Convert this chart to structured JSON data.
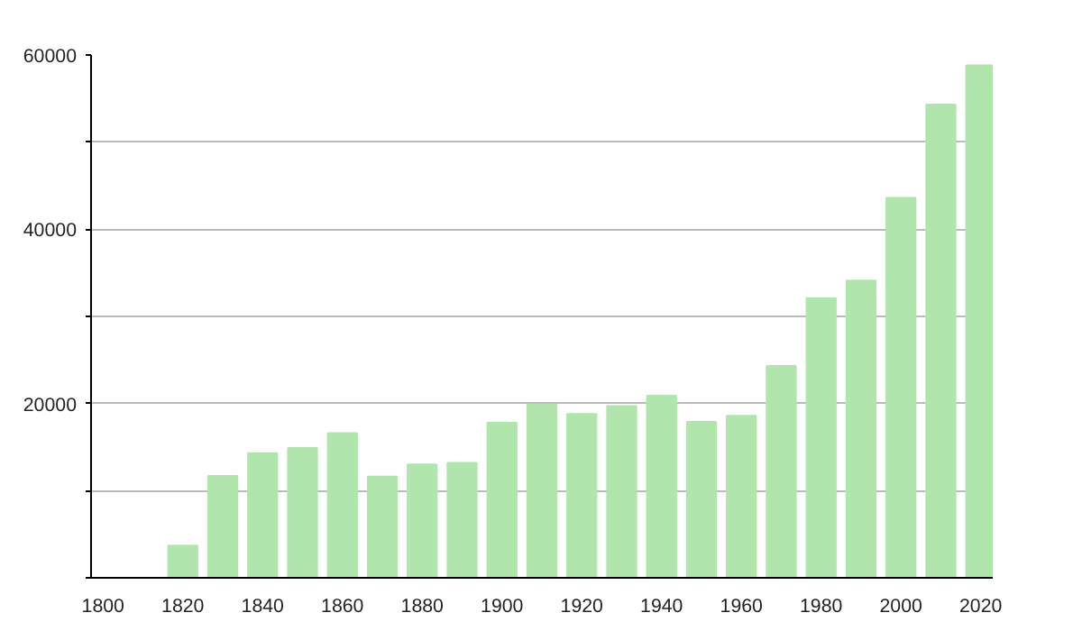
{
  "chart_data": {
    "type": "bar",
    "x": [
      1820,
      1830,
      1840,
      1850,
      1860,
      1870,
      1880,
      1890,
      1900,
      1910,
      1920,
      1930,
      1940,
      1950,
      1960,
      1970,
      1980,
      1990,
      2000,
      2010,
      2020
    ],
    "values": [
      3700,
      11700,
      14300,
      14900,
      16600,
      11600,
      13000,
      13200,
      17800,
      19900,
      18800,
      19700,
      20900,
      17900,
      18600,
      24300,
      32100,
      34100,
      43600,
      54300,
      58800
    ],
    "color": "#b0e6ac",
    "xlim": [
      1797,
      2023
    ],
    "xticks": [
      1800,
      1820,
      1840,
      1860,
      1880,
      1900,
      1920,
      1940,
      1960,
      1980,
      2000,
      2020
    ],
    "ylim": [
      0,
      60000
    ],
    "yticks": [
      {
        "value": 0,
        "label": null
      },
      {
        "value": 10000,
        "label": null
      },
      20000,
      {
        "value": 30000,
        "label": null
      },
      40000,
      {
        "value": 50000,
        "label": null
      },
      60000
    ],
    "grid": "y"
  }
}
